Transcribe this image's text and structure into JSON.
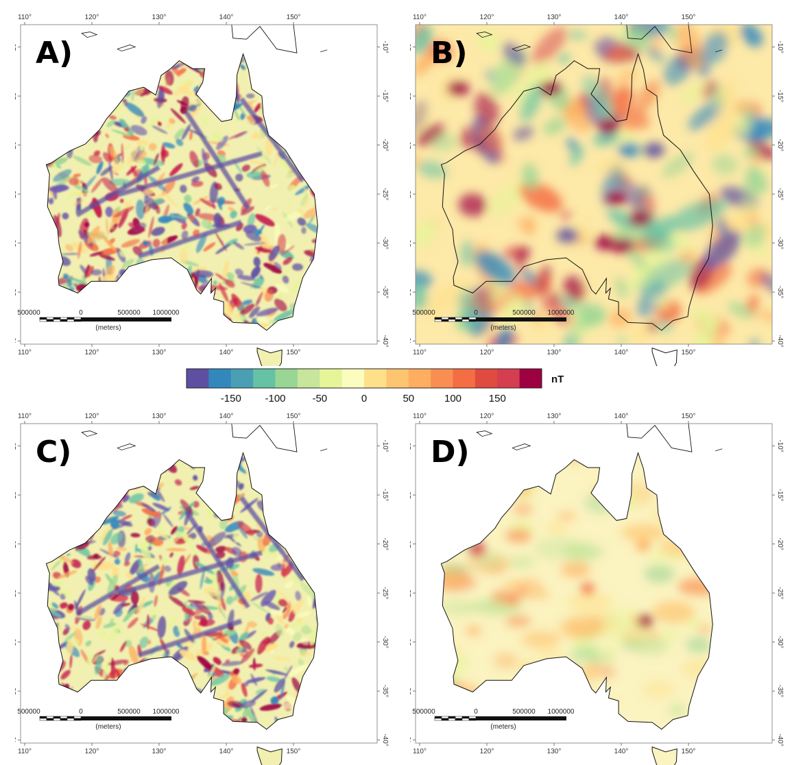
{
  "panels": [
    {
      "id": "A",
      "label": "A)",
      "style": "fine"
    },
    {
      "id": "B",
      "label": "B)",
      "style": "smooth_full"
    },
    {
      "id": "C",
      "label": "C)",
      "style": "fine"
    },
    {
      "id": "D",
      "label": "D)",
      "style": "smooth_land"
    }
  ],
  "axes": {
    "lon_ticks": [
      "110°",
      "120°",
      "130°",
      "140°",
      "150°"
    ],
    "lat_ticks": [
      "-10°",
      "-15°",
      "-20°",
      "-25°",
      "-30°",
      "-35°",
      "-40°"
    ]
  },
  "scalebar": {
    "labels": [
      "500000",
      "0",
      "500000",
      "1000000"
    ],
    "unit": "(meters)"
  },
  "colorbar": {
    "unit": "nT",
    "tick_labels": [
      "-150",
      "-100",
      "-50",
      "0",
      "50",
      "100",
      "150"
    ],
    "colors": [
      "#5e4fa2",
      "#3288bd",
      "#4a9fb5",
      "#66c2a5",
      "#99d594",
      "#c7e59b",
      "#e6f598",
      "#fbfdbe",
      "#fee08b",
      "#fdc571",
      "#fdae61",
      "#f98e52",
      "#f46d43",
      "#e04b3f",
      "#d53e4f",
      "#9e0142"
    ]
  }
}
